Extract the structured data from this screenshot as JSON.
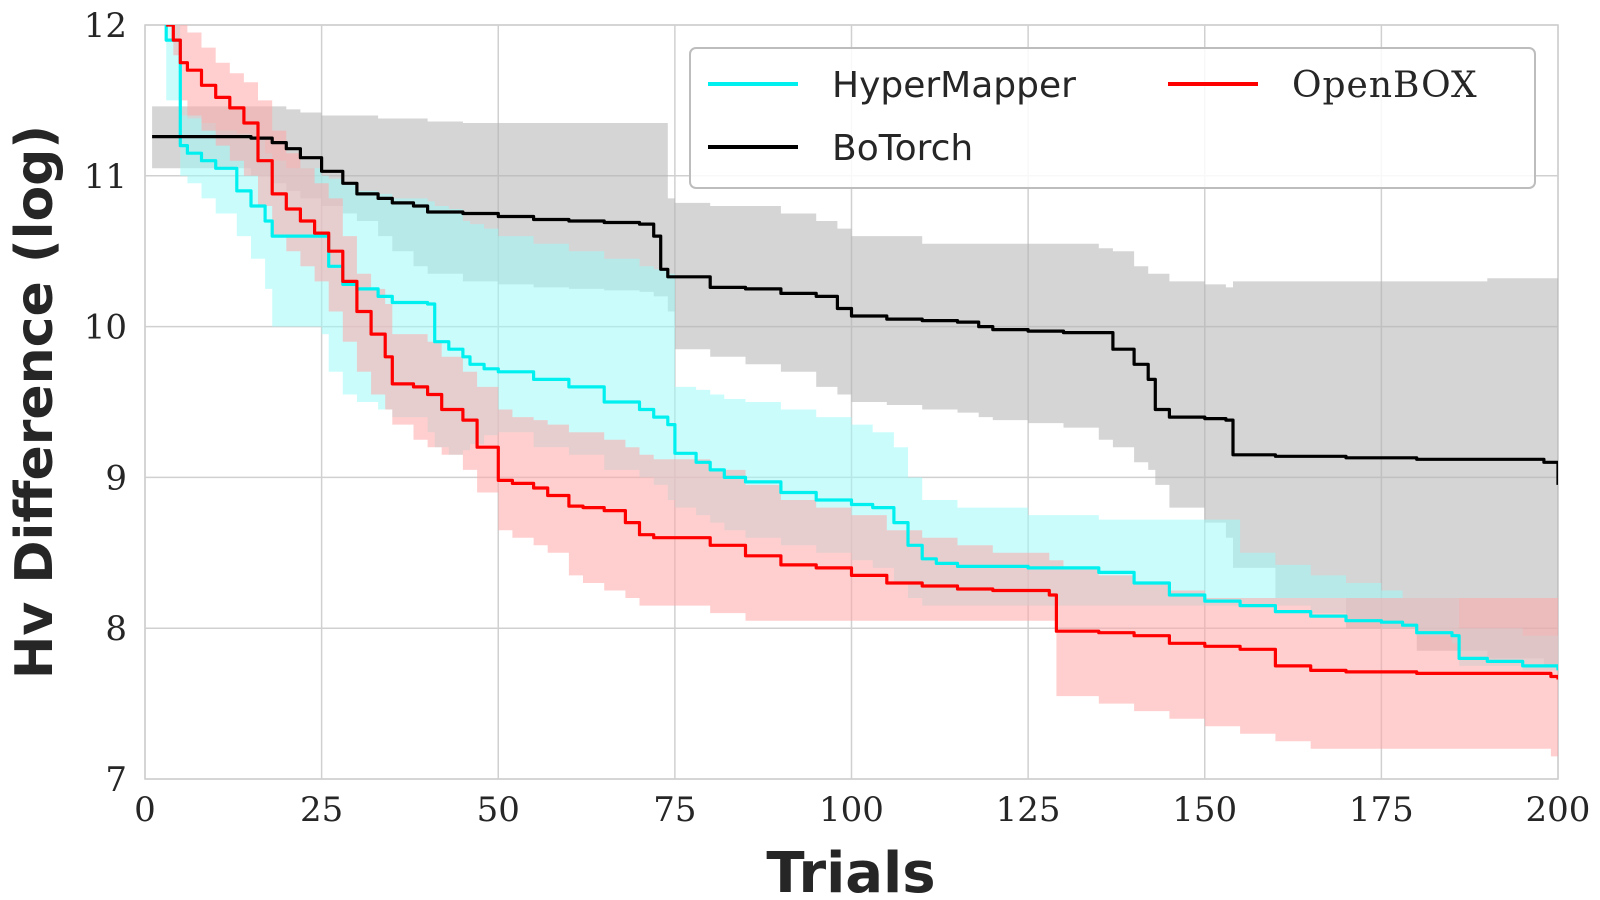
{
  "chart_data": {
    "type": "line",
    "title": "",
    "xlabel": "Trials",
    "ylabel": "Hv Difference (log)",
    "xlim": [
      0,
      200
    ],
    "ylim": [
      7,
      12
    ],
    "xticks": [
      0,
      25,
      50,
      75,
      100,
      125,
      150,
      175,
      200
    ],
    "yticks": [
      7,
      8,
      9,
      10,
      11,
      12
    ],
    "grid": true,
    "legend_position": "top-right",
    "series": [
      {
        "name": "HyperMapper",
        "color": "#00f0f0",
        "band_color": "#a0fafa",
        "x": [
          1,
          3,
          5,
          6,
          8,
          10,
          13,
          15,
          17,
          18,
          20,
          25,
          26,
          28,
          30,
          33,
          35,
          40,
          41,
          43,
          45,
          46,
          48,
          50,
          55,
          60,
          65,
          70,
          72,
          74,
          75,
          78,
          80,
          82,
          85,
          90,
          95,
          100,
          103,
          106,
          108,
          110,
          112,
          115,
          125,
          135,
          140,
          145,
          150,
          155,
          160,
          165,
          170,
          175,
          178,
          180,
          185,
          186,
          190,
          195,
          200
        ],
        "values": [
          12.3,
          11.9,
          11.2,
          11.15,
          11.1,
          11.05,
          10.9,
          10.8,
          10.7,
          10.6,
          10.6,
          10.6,
          10.4,
          10.28,
          10.25,
          10.2,
          10.16,
          10.15,
          9.9,
          9.85,
          9.8,
          9.75,
          9.72,
          9.7,
          9.65,
          9.6,
          9.5,
          9.45,
          9.4,
          9.35,
          9.16,
          9.1,
          9.05,
          9.0,
          8.97,
          8.9,
          8.85,
          8.82,
          8.8,
          8.7,
          8.55,
          8.46,
          8.43,
          8.41,
          8.4,
          8.37,
          8.3,
          8.22,
          8.18,
          8.15,
          8.11,
          8.08,
          8.05,
          8.04,
          8.02,
          7.97,
          7.95,
          7.8,
          7.78,
          7.75,
          7.72
        ],
        "lower": [
          12.3,
          11.5,
          11.0,
          10.95,
          10.85,
          10.75,
          10.6,
          10.45,
          10.25,
          10.0,
          10.0,
          9.95,
          9.7,
          9.55,
          9.5,
          9.45,
          9.4,
          9.3,
          9.2,
          9.15,
          9.18,
          9.22,
          9.28,
          9.3,
          9.2,
          9.15,
          9.05,
          9.0,
          8.95,
          8.85,
          8.8,
          8.75,
          8.7,
          8.65,
          8.6,
          8.55,
          8.5,
          8.45,
          8.4,
          8.3,
          8.2,
          8.15,
          8.15,
          8.15,
          8.15,
          8.15,
          8.15,
          8.15,
          8.15,
          8.15,
          8.15,
          8.1,
          8.05,
          8.0,
          8.0,
          7.95,
          7.9,
          7.75,
          7.75,
          7.72,
          7.7
        ],
        "upper": [
          12.3,
          12.3,
          11.4,
          11.38,
          11.35,
          11.3,
          11.28,
          11.25,
          11.15,
          11.1,
          11.05,
          11.0,
          10.98,
          10.95,
          10.9,
          10.88,
          10.85,
          10.83,
          10.8,
          10.78,
          10.7,
          10.68,
          10.65,
          10.6,
          10.55,
          10.5,
          10.45,
          10.4,
          10.38,
          10.35,
          9.6,
          9.58,
          9.55,
          9.52,
          9.5,
          9.45,
          9.4,
          9.35,
          9.3,
          9.2,
          9.0,
          8.85,
          8.85,
          8.8,
          8.75,
          8.72,
          8.72,
          8.72,
          8.72,
          8.5,
          8.42,
          8.35,
          8.3,
          8.25,
          8.2,
          8.2,
          8.2,
          8.0,
          8.0,
          7.95,
          7.9
        ]
      },
      {
        "name": "BoTorch",
        "color": "#000000",
        "band_color": "#b3b3b3",
        "x": [
          1,
          10,
          15,
          18,
          20,
          22,
          25,
          28,
          30,
          33,
          35,
          38,
          40,
          45,
          50,
          55,
          60,
          65,
          70,
          72,
          73,
          74,
          75,
          80,
          85,
          90,
          95,
          98,
          100,
          105,
          110,
          115,
          118,
          120,
          125,
          130,
          135,
          137,
          140,
          142,
          143,
          145,
          150,
          153,
          154,
          160,
          170,
          180,
          190,
          198,
          200
        ],
        "values": [
          11.26,
          11.26,
          11.25,
          11.22,
          11.18,
          11.12,
          11.03,
          10.95,
          10.88,
          10.85,
          10.82,
          10.8,
          10.76,
          10.75,
          10.73,
          10.71,
          10.7,
          10.69,
          10.68,
          10.6,
          10.38,
          10.33,
          10.33,
          10.26,
          10.25,
          10.22,
          10.2,
          10.12,
          10.07,
          10.05,
          10.04,
          10.03,
          10.0,
          9.98,
          9.97,
          9.96,
          9.96,
          9.85,
          9.75,
          9.65,
          9.45,
          9.4,
          9.39,
          9.38,
          9.15,
          9.14,
          9.13,
          9.12,
          9.12,
          9.1,
          8.95
        ],
        "lower": [
          11.05,
          11.05,
          11.0,
          10.95,
          10.9,
          10.85,
          10.8,
          10.75,
          10.7,
          10.6,
          10.5,
          10.4,
          10.35,
          10.3,
          10.28,
          10.26,
          10.25,
          10.24,
          10.23,
          10.2,
          10.2,
          10.1,
          9.85,
          9.8,
          9.75,
          9.7,
          9.6,
          9.55,
          9.5,
          9.48,
          9.45,
          9.43,
          9.4,
          9.38,
          9.36,
          9.33,
          9.25,
          9.2,
          9.1,
          9.05,
          8.95,
          8.8,
          8.7,
          8.6,
          8.4,
          8.2,
          8.0,
          7.85,
          7.8,
          7.75,
          7.75
        ],
        "upper": [
          11.46,
          11.46,
          11.46,
          11.46,
          11.44,
          11.42,
          11.4,
          11.4,
          11.4,
          11.38,
          11.38,
          11.38,
          11.36,
          11.35,
          11.35,
          11.35,
          11.35,
          11.35,
          11.35,
          11.35,
          11.35,
          10.85,
          10.82,
          10.8,
          10.8,
          10.75,
          10.7,
          10.65,
          10.6,
          10.6,
          10.55,
          10.55,
          10.55,
          10.55,
          10.55,
          10.55,
          10.52,
          10.5,
          10.4,
          10.35,
          10.35,
          10.3,
          10.28,
          10.26,
          10.3,
          10.3,
          10.3,
          10.3,
          10.32,
          10.32,
          10.1
        ]
      },
      {
        "name": "OpenBOX",
        "color": "#ff0000",
        "band_color": "#ffa8a8",
        "x": [
          3,
          4,
          5,
          6,
          8,
          10,
          12,
          14,
          16,
          18,
          20,
          22,
          24,
          26,
          28,
          30,
          32,
          34,
          35,
          38,
          40,
          42,
          45,
          47,
          50,
          52,
          55,
          57,
          60,
          62,
          65,
          68,
          70,
          72,
          80,
          85,
          90,
          95,
          100,
          105,
          110,
          115,
          120,
          125,
          128,
          129,
          130,
          135,
          140,
          145,
          150,
          155,
          160,
          165,
          170,
          180,
          190,
          199,
          200
        ],
        "values": [
          12.0,
          11.9,
          11.75,
          11.7,
          11.6,
          11.52,
          11.45,
          11.35,
          11.1,
          10.88,
          10.78,
          10.7,
          10.62,
          10.5,
          10.3,
          10.1,
          9.95,
          9.8,
          9.62,
          9.6,
          9.55,
          9.45,
          9.38,
          9.2,
          8.98,
          8.96,
          8.93,
          8.88,
          8.81,
          8.8,
          8.78,
          8.7,
          8.62,
          8.6,
          8.55,
          8.48,
          8.42,
          8.4,
          8.35,
          8.3,
          8.28,
          8.26,
          8.25,
          8.25,
          8.22,
          7.98,
          7.98,
          7.97,
          7.95,
          7.9,
          7.88,
          7.86,
          7.75,
          7.72,
          7.71,
          7.7,
          7.7,
          7.68,
          7.66
        ],
        "lower": [
          12.0,
          11.8,
          11.5,
          11.4,
          11.3,
          11.2,
          11.1,
          11.0,
          10.8,
          10.6,
          10.5,
          10.4,
          10.3,
          10.1,
          9.9,
          9.7,
          9.55,
          9.45,
          9.35,
          9.25,
          9.2,
          9.15,
          9.05,
          8.9,
          8.65,
          8.6,
          8.55,
          8.5,
          8.35,
          8.3,
          8.25,
          8.2,
          8.15,
          8.15,
          8.1,
          8.05,
          8.05,
          8.05,
          8.05,
          8.05,
          8.05,
          8.05,
          8.05,
          8.05,
          8.05,
          7.55,
          7.55,
          7.5,
          7.45,
          7.4,
          7.35,
          7.3,
          7.25,
          7.2,
          7.2,
          7.2,
          7.2,
          7.15,
          7.15
        ],
        "upper": [
          12.3,
          12.2,
          12.0,
          11.95,
          11.85,
          11.75,
          11.68,
          11.62,
          11.5,
          11.3,
          11.15,
          11.05,
          10.95,
          10.85,
          10.6,
          10.35,
          10.25,
          10.15,
          9.95,
          9.95,
          9.9,
          9.8,
          9.7,
          9.6,
          9.45,
          9.4,
          9.38,
          9.35,
          9.3,
          9.3,
          9.25,
          9.2,
          9.15,
          9.12,
          9.05,
          8.95,
          8.85,
          8.8,
          8.75,
          8.65,
          8.6,
          8.55,
          8.5,
          8.5,
          8.45,
          8.45,
          8.4,
          8.35,
          8.3,
          8.25,
          8.2,
          8.2,
          8.2,
          8.2,
          8.2,
          8.2,
          8.2,
          8.2,
          8.2
        ]
      }
    ]
  }
}
